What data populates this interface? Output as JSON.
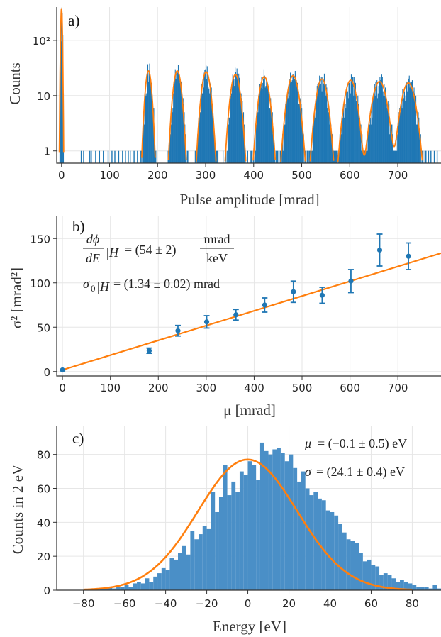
{
  "colors": {
    "bars": "#1f77b4",
    "fit": "#ff7f0e",
    "hist_c": "#4a8fc7",
    "errorbar": "#1f77b4"
  },
  "chart_data": [
    {
      "id": "a",
      "panel_label": "a)",
      "type": "bar",
      "xlabel": "Pulse amplitude [mrad]",
      "ylabel": "Counts",
      "yscale": "log",
      "xlim": [
        -10,
        790
      ],
      "ylim": [
        0.6,
        400
      ],
      "xticks": [
        0,
        100,
        200,
        300,
        400,
        500,
        600,
        700
      ],
      "yticks": [
        {
          "v": 1,
          "label": "1"
        },
        {
          "v": 10,
          "label": "10"
        },
        {
          "v": 100,
          "label": "10²"
        }
      ],
      "grid": true,
      "peaks": [
        {
          "center": 0,
          "height": 380,
          "sigma": 1.3
        },
        {
          "center": 181,
          "height": 28,
          "sigma": 5.2
        },
        {
          "center": 241,
          "height": 28,
          "sigma": 6.8
        },
        {
          "center": 301,
          "height": 27,
          "sigma": 7.5
        },
        {
          "center": 362,
          "height": 24,
          "sigma": 8.0
        },
        {
          "center": 422,
          "height": 22,
          "sigma": 8.7
        },
        {
          "center": 482,
          "height": 23,
          "sigma": 9.5
        },
        {
          "center": 542,
          "height": 20,
          "sigma": 9.3
        },
        {
          "center": 602,
          "height": 19,
          "sigma": 10.1
        },
        {
          "center": 662,
          "height": 18,
          "sigma": 11.7
        },
        {
          "center": 722,
          "height": 17,
          "sigma": 11.4
        }
      ],
      "background_counts_x": [
        40,
        45,
        58,
        61,
        70,
        78,
        86,
        96,
        104,
        110,
        118,
        126,
        132,
        138,
        142,
        150,
        157,
        163,
        756,
        763,
        768,
        775,
        781
      ]
    },
    {
      "id": "b",
      "panel_label": "b)",
      "type": "scatter",
      "xlabel": "μ [mrad]",
      "ylabel": "σ² [mrad²]",
      "xlim": [
        -12,
        790
      ],
      "ylim": [
        -5,
        175
      ],
      "xticks": [
        0,
        100,
        200,
        300,
        400,
        500,
        600,
        700
      ],
      "yticks": [
        0,
        50,
        100,
        150
      ],
      "grid": true,
      "points": [
        {
          "x": 0,
          "y": 1.8,
          "err": 0.8
        },
        {
          "x": 181,
          "y": 23.5,
          "err": 3
        },
        {
          "x": 241,
          "y": 46,
          "err": 6
        },
        {
          "x": 301,
          "y": 56,
          "err": 7
        },
        {
          "x": 362,
          "y": 64,
          "err": 6
        },
        {
          "x": 422,
          "y": 75,
          "err": 8
        },
        {
          "x": 482,
          "y": 90,
          "err": 12
        },
        {
          "x": 542,
          "y": 86,
          "err": 9
        },
        {
          "x": 602,
          "y": 102,
          "err": 13
        },
        {
          "x": 662,
          "y": 137,
          "err": 18
        },
        {
          "x": 722,
          "y": 130,
          "err": 15
        }
      ],
      "fit_line": {
        "x": [
          0,
          790
        ],
        "y": [
          1.8,
          133.5
        ]
      },
      "annotation_line1": {
        "lhs_num": "dϕ",
        "lhs_den": "dE",
        "sub": "|H",
        "rhs": "= (54 ± 2)",
        "unit_num": "mrad",
        "unit_den": "keV"
      },
      "annotation_line2": {
        "lhs": "σ",
        "sub0": "0",
        "mid": "|H",
        "rhs": "= (1.34 ± 0.02) mrad"
      }
    },
    {
      "id": "c",
      "panel_label": "c)",
      "type": "bar",
      "xlabel": "Energy [eV]",
      "ylabel": "Counts in 2 eV",
      "xlim": [
        -93,
        94
      ],
      "ylim": [
        0,
        97
      ],
      "xticks": [
        -80,
        -60,
        -40,
        -20,
        0,
        20,
        40,
        60,
        80
      ],
      "xtick_labels": [
        "−80",
        "−60",
        "−40",
        "−20",
        "0",
        "20",
        "40",
        "60",
        "80"
      ],
      "yticks": [
        0,
        20,
        40,
        60,
        80
      ],
      "grid": true,
      "bin_width": 2,
      "bin_start": -78,
      "counts": [
        0,
        0,
        1,
        1,
        1,
        2,
        1,
        2,
        2,
        3,
        2,
        4,
        5,
        4,
        7,
        5,
        8,
        10,
        13,
        12,
        19,
        18,
        22,
        26,
        21,
        35,
        30,
        33,
        38,
        36,
        58,
        46,
        55,
        74,
        56,
        64,
        58,
        70,
        68,
        76,
        74,
        65,
        87,
        82,
        80,
        83,
        84,
        81,
        76,
        80,
        72,
        64,
        70,
        60,
        56,
        58,
        54,
        53,
        47,
        46,
        44,
        39,
        34,
        30,
        29,
        28,
        22,
        17,
        18,
        15,
        14,
        9,
        10,
        9,
        7,
        5,
        6,
        5,
        4,
        3,
        2,
        2,
        2,
        1,
        3,
        1,
        0,
        2,
        1,
        0,
        1,
        0,
        1,
        0,
        1,
        0
      ],
      "fit": {
        "mu": -0.1,
        "sigma": 24.1,
        "amplitude": 77
      },
      "annotation_mu": {
        "symbol": "μ",
        "rhs": "= (−0.1 ± 0.5) eV"
      },
      "annotation_sigma": {
        "symbol": "σ",
        "rhs": "= (24.1 ± 0.4) eV"
      }
    }
  ]
}
